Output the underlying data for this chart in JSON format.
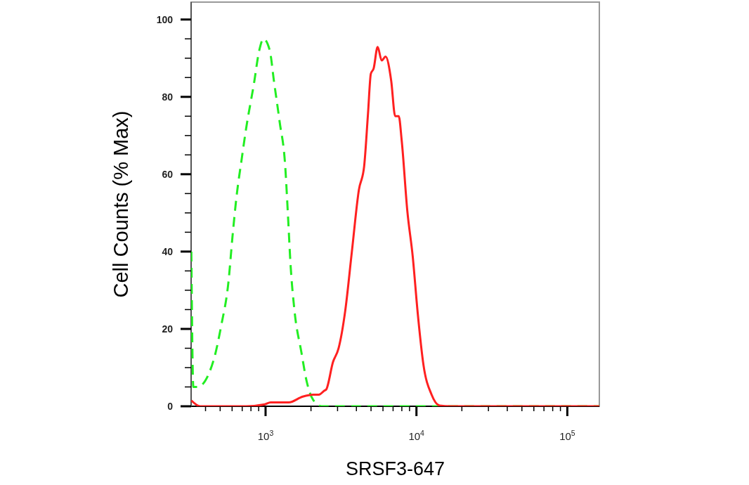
{
  "chart_data": {
    "type": "line",
    "xlabel": "SRSF3-647",
    "ylabel": "Cell Counts (% Max)",
    "log": "x",
    "grid": false,
    "marker": "none",
    "xlim": [
      321,
      163000
    ],
    "ylim": [
      0,
      104.5
    ],
    "xticks": [
      {
        "value": 400,
        "label": null
      },
      {
        "value": 500,
        "label": null
      },
      {
        "value": 600,
        "label": null
      },
      {
        "value": 700,
        "label": null
      },
      {
        "value": 800,
        "label": null
      },
      {
        "value": 900,
        "label": null
      },
      {
        "value": 1000,
        "label": "10$^{3}$"
      },
      {
        "value": 2000,
        "label": null
      },
      {
        "value": 3000,
        "label": null
      },
      {
        "value": 4000,
        "label": null
      },
      {
        "value": 5000,
        "label": null
      },
      {
        "value": 6000,
        "label": null
      },
      {
        "value": 7000,
        "label": null
      },
      {
        "value": 8000,
        "label": null
      },
      {
        "value": 9000,
        "label": null
      },
      {
        "value": 10000,
        "label": "10$^{4}$"
      },
      {
        "value": 20000,
        "label": null
      },
      {
        "value": 30000,
        "label": null
      },
      {
        "value": 40000,
        "label": null
      },
      {
        "value": 50000,
        "label": null
      },
      {
        "value": 60000,
        "label": null
      },
      {
        "value": 70000,
        "label": null
      },
      {
        "value": 80000,
        "label": null
      },
      {
        "value": 90000,
        "label": null
      },
      {
        "value": 100000,
        "label": "10$^{5}$"
      }
    ],
    "yticks": [
      0,
      {
        "value": 5,
        "label": null
      },
      {
        "value": 10,
        "label": null
      },
      {
        "value": 15,
        "label": null
      },
      20,
      {
        "value": 25,
        "label": null
      },
      {
        "value": 30,
        "label": null
      },
      {
        "value": 35,
        "label": null
      },
      40,
      {
        "value": 45,
        "label": null
      },
      {
        "value": 50,
        "label": null
      },
      {
        "value": 55,
        "label": null
      },
      60,
      {
        "value": 65,
        "label": null
      },
      {
        "value": 70,
        "label": null
      },
      {
        "value": 75,
        "label": null
      },
      80,
      {
        "value": 85,
        "label": null
      },
      {
        "value": 90,
        "label": null
      },
      {
        "value": 95,
        "label": null
      },
      100
    ],
    "series": [
      {
        "color": "#22ee22",
        "line_style": "dashed",
        "x": [
          322,
          332,
          354,
          453,
          509,
          567,
          604,
          641,
          695,
          741,
          838,
          908,
          968,
          1066,
          1137,
          1239,
          1350,
          1409,
          1462,
          1552,
          1727,
          1871,
          2071,
          2355,
          163000
        ],
        "values": [
          40,
          5,
          5,
          12,
          21,
          32,
          44,
          54,
          64,
          71.5,
          83.5,
          92,
          95,
          92,
          84,
          73.6,
          62,
          49,
          37,
          25,
          14,
          6.5,
          1.6,
          0,
          0
        ]
      },
      {
        "color": "#ff2020",
        "line_style": "solid",
        "x": [
          322,
          369,
          741,
          989,
          1078,
          1424,
          1764,
          2071,
          2256,
          2445,
          2528,
          2796,
          3048,
          3373,
          3733,
          4156,
          4500,
          4775,
          4986,
          5200,
          5531,
          5885,
          6240,
          6800,
          7230,
          7630,
          7985,
          8700,
          9450,
          10200,
          11130,
          12600,
          14230,
          16800,
          163000
        ],
        "values": [
          1.5,
          0,
          0,
          0.5,
          1,
          1,
          2.5,
          3,
          3,
          4,
          4.4,
          11.4,
          15,
          24.7,
          40,
          56,
          62,
          75.7,
          86,
          87.3,
          92.9,
          89.4,
          90.4,
          84.2,
          75,
          75,
          68.7,
          50.5,
          38.7,
          24,
          10.7,
          3,
          0.2,
          0,
          0
        ]
      }
    ]
  }
}
